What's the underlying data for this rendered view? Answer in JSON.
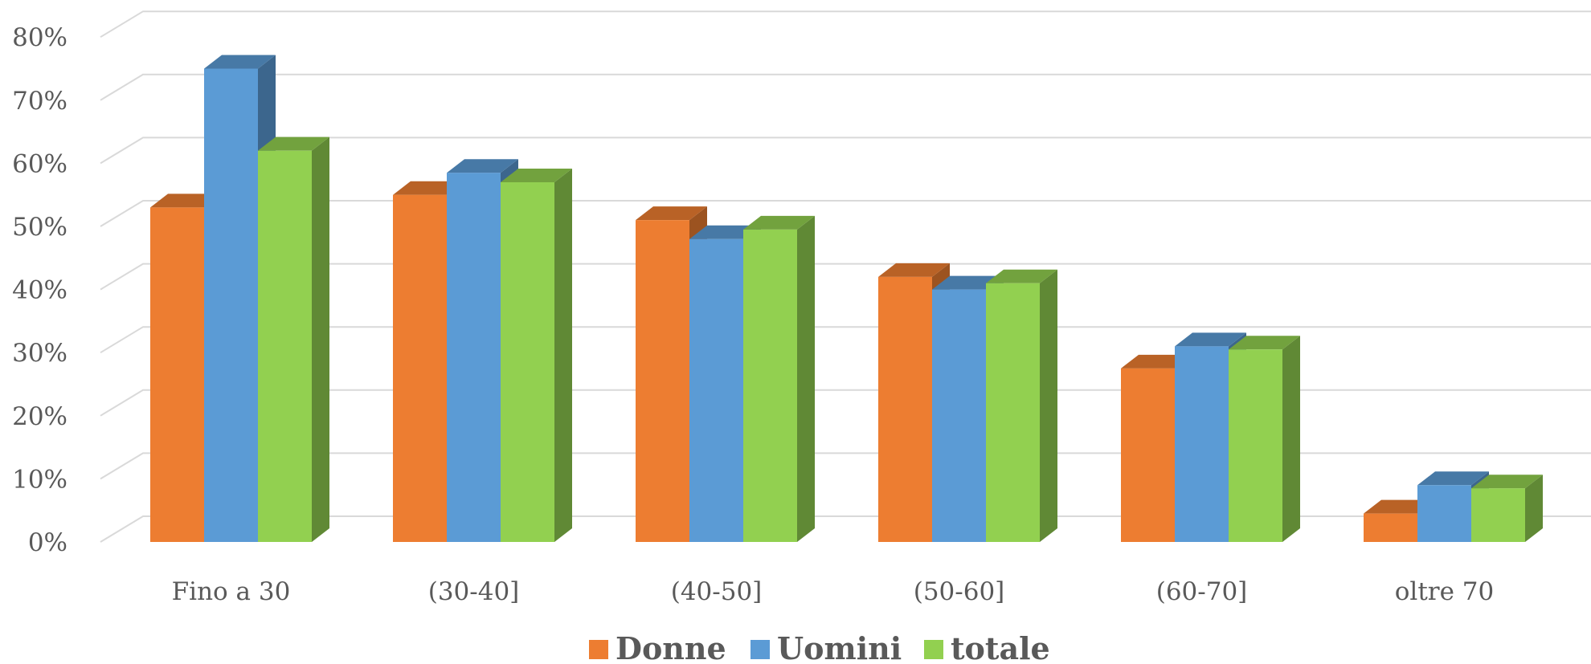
{
  "chart_data": {
    "type": "bar",
    "style": "3d-clustered-column",
    "categories": [
      "Fino a 30",
      "(30-40]",
      "(40-50]",
      "(50-60]",
      "(60-70]",
      "oltre 70"
    ],
    "series": [
      {
        "name": "Donne",
        "color": "#ED7D31",
        "values": [
          53,
          55,
          51,
          42,
          27.5,
          4.5
        ]
      },
      {
        "name": "Uomini",
        "color": "#5B9BD5",
        "values": [
          75,
          58.5,
          48,
          40,
          31,
          9
        ]
      },
      {
        "name": "totale",
        "color": "#92D050",
        "values": [
          62,
          57,
          49.5,
          41,
          30.5,
          8.5
        ]
      }
    ],
    "ylim": [
      0,
      80
    ],
    "yticks": [
      "0%",
      "10%",
      "20%",
      "30%",
      "40%",
      "50%",
      "60%",
      "70%",
      "80%"
    ],
    "grid": true,
    "legend_position": "bottom"
  }
}
